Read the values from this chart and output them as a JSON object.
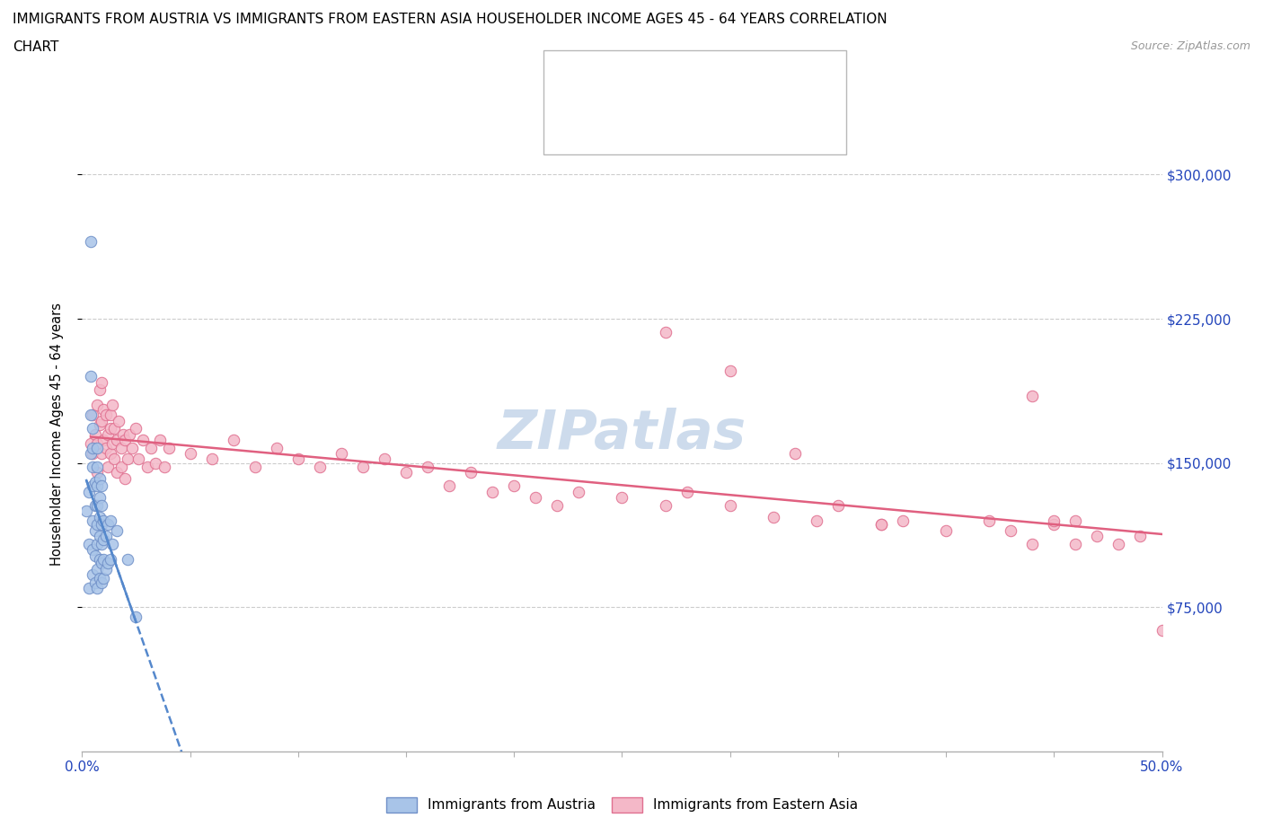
{
  "title_line1": "IMMIGRANTS FROM AUSTRIA VS IMMIGRANTS FROM EASTERN ASIA HOUSEHOLDER INCOME AGES 45 - 64 YEARS CORRELATION",
  "title_line2": "CHART",
  "source_text": "Source: ZipAtlas.com",
  "ylabel": "Householder Income Ages 45 - 64 years",
  "xlim": [
    0.0,
    0.5
  ],
  "ylim": [
    0,
    330000
  ],
  "austria_color": "#a8c4e8",
  "austria_edge_color": "#7090c8",
  "eastern_asia_color": "#f4b8c8",
  "eastern_asia_edge_color": "#e07090",
  "austria_trend_color": "#5588cc",
  "eastern_asia_trend_color": "#e06080",
  "legend_R_color": "#2244cc",
  "legend_N_color": "#2244cc",
  "watermark_color": "#c8d8ea",
  "austria_scatter_x": [
    0.002,
    0.003,
    0.003,
    0.003,
    0.004,
    0.004,
    0.004,
    0.004,
    0.005,
    0.005,
    0.005,
    0.005,
    0.005,
    0.005,
    0.005,
    0.006,
    0.006,
    0.006,
    0.006,
    0.006,
    0.007,
    0.007,
    0.007,
    0.007,
    0.007,
    0.007,
    0.007,
    0.007,
    0.008,
    0.008,
    0.008,
    0.008,
    0.008,
    0.008,
    0.009,
    0.009,
    0.009,
    0.009,
    0.009,
    0.009,
    0.01,
    0.01,
    0.01,
    0.01,
    0.011,
    0.011,
    0.012,
    0.012,
    0.013,
    0.013,
    0.014,
    0.016,
    0.021,
    0.025
  ],
  "austria_scatter_y": [
    125000,
    108000,
    135000,
    85000,
    155000,
    175000,
    195000,
    265000,
    92000,
    105000,
    120000,
    138000,
    148000,
    158000,
    168000,
    88000,
    102000,
    115000,
    128000,
    140000,
    85000,
    95000,
    108000,
    118000,
    128000,
    138000,
    148000,
    158000,
    90000,
    100000,
    112000,
    122000,
    132000,
    142000,
    88000,
    98000,
    108000,
    118000,
    128000,
    138000,
    90000,
    100000,
    110000,
    120000,
    95000,
    112000,
    98000,
    118000,
    100000,
    120000,
    108000,
    115000,
    100000,
    70000
  ],
  "eastern_asia_scatter_x": [
    0.004,
    0.005,
    0.005,
    0.006,
    0.007,
    0.007,
    0.007,
    0.008,
    0.008,
    0.009,
    0.009,
    0.009,
    0.01,
    0.01,
    0.011,
    0.011,
    0.012,
    0.012,
    0.013,
    0.013,
    0.013,
    0.014,
    0.014,
    0.015,
    0.015,
    0.016,
    0.016,
    0.017,
    0.018,
    0.018,
    0.019,
    0.02,
    0.02,
    0.021,
    0.022,
    0.023,
    0.025,
    0.026,
    0.028,
    0.03,
    0.032,
    0.034,
    0.036,
    0.038,
    0.04,
    0.05,
    0.06,
    0.07,
    0.08,
    0.09,
    0.1,
    0.11,
    0.12,
    0.13,
    0.14,
    0.15,
    0.16,
    0.17,
    0.18,
    0.19,
    0.2,
    0.21,
    0.22,
    0.23,
    0.25,
    0.27,
    0.28,
    0.3,
    0.32,
    0.34,
    0.35,
    0.37,
    0.38,
    0.4,
    0.42,
    0.43,
    0.44,
    0.45,
    0.46,
    0.47,
    0.48,
    0.49,
    0.5,
    0.44,
    0.45,
    0.46,
    0.27,
    0.3,
    0.33,
    0.37
  ],
  "eastern_asia_scatter_y": [
    160000,
    175000,
    155000,
    165000,
    180000,
    160000,
    145000,
    170000,
    188000,
    155000,
    172000,
    192000,
    162000,
    178000,
    158000,
    175000,
    165000,
    148000,
    168000,
    155000,
    175000,
    160000,
    180000,
    152000,
    168000,
    162000,
    145000,
    172000,
    158000,
    148000,
    165000,
    142000,
    162000,
    152000,
    165000,
    158000,
    168000,
    152000,
    162000,
    148000,
    158000,
    150000,
    162000,
    148000,
    158000,
    155000,
    152000,
    162000,
    148000,
    158000,
    152000,
    148000,
    155000,
    148000,
    152000,
    145000,
    148000,
    138000,
    145000,
    135000,
    138000,
    132000,
    128000,
    135000,
    132000,
    128000,
    135000,
    128000,
    122000,
    120000,
    128000,
    118000,
    120000,
    115000,
    120000,
    115000,
    108000,
    118000,
    108000,
    112000,
    108000,
    112000,
    63000,
    185000,
    120000,
    120000,
    218000,
    198000,
    155000,
    118000
  ]
}
